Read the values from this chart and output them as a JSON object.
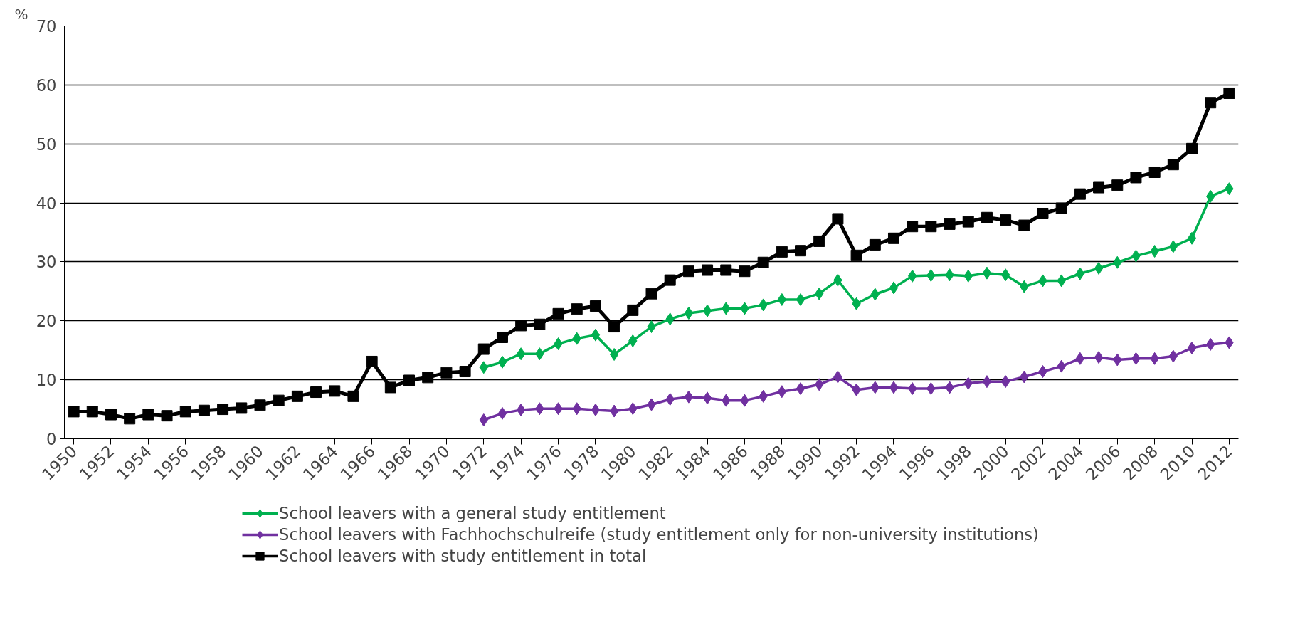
{
  "chart_data": {
    "type": "line",
    "ylabel": "%",
    "x": [
      1950,
      1951,
      1952,
      1953,
      1954,
      1955,
      1956,
      1957,
      1958,
      1959,
      1960,
      1961,
      1962,
      1963,
      1964,
      1965,
      1966,
      1967,
      1968,
      1969,
      1970,
      1971,
      1972,
      1973,
      1974,
      1975,
      1976,
      1977,
      1978,
      1979,
      1980,
      1981,
      1982,
      1983,
      1984,
      1985,
      1986,
      1987,
      1988,
      1989,
      1990,
      1991,
      1992,
      1993,
      1994,
      1995,
      1996,
      1997,
      1998,
      1999,
      2000,
      2001,
      2002,
      2003,
      2004,
      2005,
      2006,
      2007,
      2008,
      2009,
      2010,
      2011,
      2012
    ],
    "series": [
      {
        "name": "School leavers with a general study entitlement",
        "color": "#00b050",
        "marker": "diamond",
        "values": [
          null,
          null,
          null,
          null,
          null,
          null,
          null,
          null,
          null,
          null,
          null,
          null,
          null,
          null,
          null,
          null,
          null,
          null,
          null,
          null,
          null,
          null,
          12.1,
          13.0,
          14.4,
          14.4,
          16.1,
          17.0,
          17.6,
          14.3,
          16.6,
          19.0,
          20.3,
          21.3,
          21.7,
          22.1,
          22.1,
          22.7,
          23.6,
          23.6,
          24.6,
          26.9,
          22.9,
          24.5,
          25.6,
          27.6,
          27.7,
          27.8,
          27.6,
          28.1,
          27.8,
          25.8,
          26.8,
          26.8,
          28.0,
          28.9,
          29.9,
          31.0,
          31.8,
          32.6,
          34.0,
          41.1,
          42.4
        ]
      },
      {
        "name": "School leavers with Fachhochschulreife (study entitlement only for non-university institutions)",
        "color": "#7030a0",
        "marker": "diamond",
        "values": [
          null,
          null,
          null,
          null,
          null,
          null,
          null,
          null,
          null,
          null,
          null,
          null,
          null,
          null,
          null,
          null,
          null,
          null,
          null,
          null,
          null,
          null,
          3.2,
          4.3,
          4.9,
          5.1,
          5.1,
          5.1,
          4.9,
          4.7,
          5.1,
          5.8,
          6.7,
          7.1,
          6.9,
          6.5,
          6.5,
          7.2,
          8.0,
          8.5,
          9.2,
          10.5,
          8.3,
          8.7,
          8.7,
          8.5,
          8.5,
          8.7,
          9.4,
          9.7,
          9.7,
          10.5,
          11.4,
          12.3,
          13.6,
          13.8,
          13.4,
          13.6,
          13.6,
          14.0,
          15.4,
          16.0,
          16.3
        ]
      },
      {
        "name": "School leavers with study entitlement in total",
        "color": "#000000",
        "marker": "square",
        "values": [
          4.6,
          4.6,
          4.1,
          3.4,
          4.1,
          3.9,
          4.6,
          4.8,
          5.0,
          5.2,
          5.7,
          6.5,
          7.2,
          7.9,
          8.1,
          7.2,
          13.1,
          8.7,
          9.9,
          10.4,
          11.2,
          11.4,
          15.2,
          17.2,
          19.2,
          19.4,
          21.2,
          22.0,
          22.5,
          19.0,
          21.8,
          24.6,
          26.9,
          28.4,
          28.6,
          28.6,
          28.4,
          29.9,
          31.7,
          31.9,
          33.5,
          37.3,
          31.1,
          32.9,
          34.0,
          36.0,
          36.0,
          36.4,
          36.8,
          37.5,
          37.1,
          36.2,
          38.2,
          39.1,
          41.5,
          42.6,
          43.0,
          44.3,
          45.2,
          46.5,
          49.2,
          57.0,
          58.6
        ]
      }
    ],
    "xlim": [
      1949.5,
      2012.5
    ],
    "xticks": [
      1950,
      1952,
      1954,
      1956,
      1958,
      1960,
      1962,
      1964,
      1966,
      1968,
      1970,
      1972,
      1974,
      1976,
      1978,
      1980,
      1982,
      1984,
      1986,
      1988,
      1990,
      1992,
      1994,
      1996,
      1998,
      2000,
      2002,
      2004,
      2006,
      2008,
      2010,
      2012
    ],
    "ylim": [
      0,
      70
    ],
    "yticks": [
      0,
      10,
      20,
      30,
      40,
      50,
      60,
      70
    ],
    "grid": "y",
    "legend": "bottom",
    "line_style": "solid"
  }
}
